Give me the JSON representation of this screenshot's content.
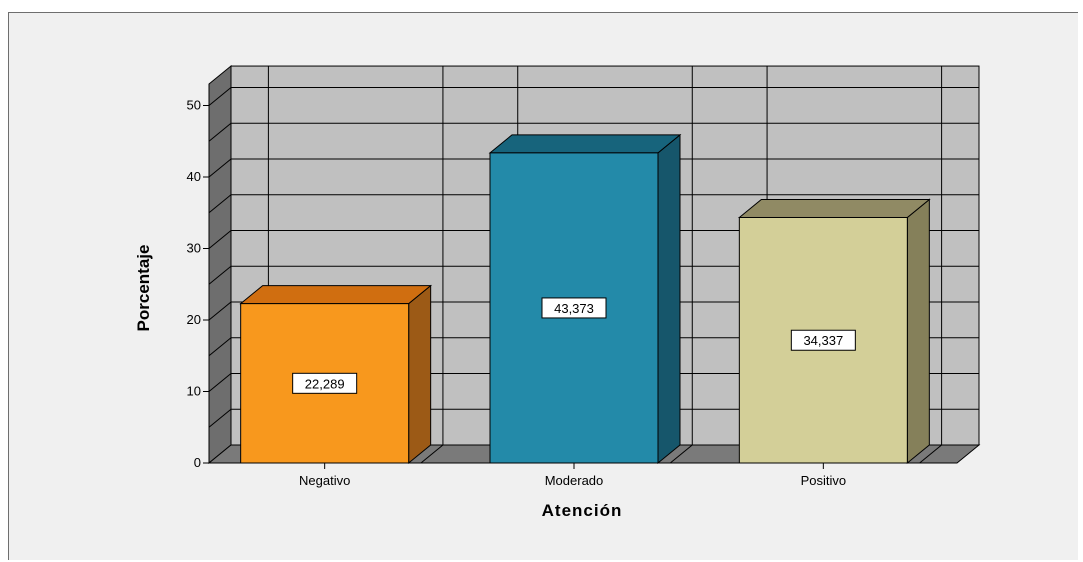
{
  "chart_data": {
    "type": "bar",
    "style": "3d",
    "categories": [
      "Negativo",
      "Moderado",
      "Positivo"
    ],
    "values": [
      22.289,
      43.373,
      34.337
    ],
    "value_labels": [
      "22,289",
      "43,373",
      "34,337"
    ],
    "xlabel": "Atención",
    "ylabel": "Porcentaje",
    "ylim": [
      0,
      50
    ],
    "yticks": [
      0,
      10,
      20,
      30,
      40,
      50
    ],
    "grid": true,
    "legend": "none",
    "colors": {
      "bar_front": [
        "#f8981d",
        "#238aa9",
        "#d3cf98"
      ],
      "bar_side": [
        "#9c5a16",
        "#16566b",
        "#85805a"
      ],
      "bar_top": [
        "#d06e10",
        "#17647c",
        "#908a64"
      ],
      "back_wall": "#c0c0c0",
      "side_wall": "#6e6e6e",
      "floor": "#7a7a7a",
      "gridline": "#000000"
    }
  }
}
